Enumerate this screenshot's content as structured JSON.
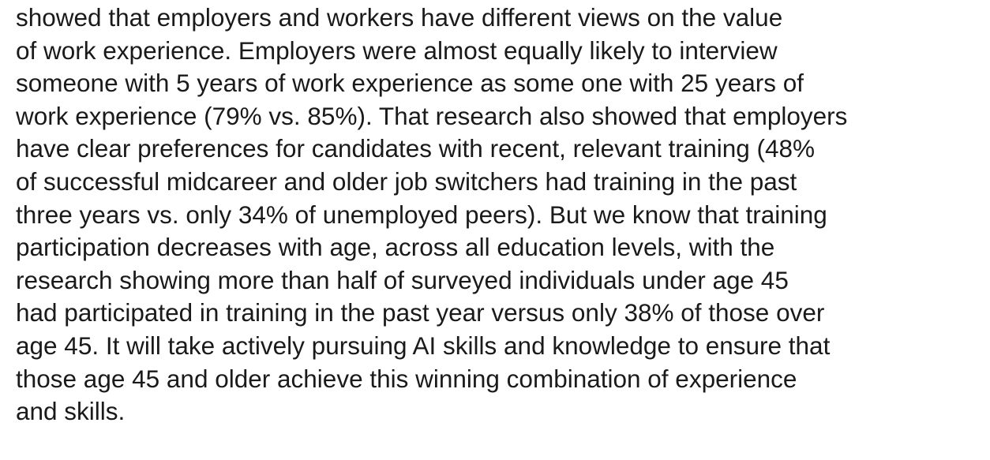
{
  "paragraph": {
    "lines": [
      "showed that employers and workers have different views on the value",
      "of work experience. Employers were almost equally likely to interview",
      "someone with 5 years of work experience as some one with 25 years of",
      "work experience (79% vs. 85%). That research also showed that employers",
      "have clear preferences for candidates with recent, relevant training (48%",
      "of successful midcareer and older job switchers had training in the past",
      "three years vs. only 34% of unemployed peers). But we know that training",
      "participation decreases with age, across all education levels, with the",
      "research showing more than half of surveyed individuals under age 45",
      "had participated in training in the past year versus only 38% of those over",
      "age 45. It will take actively pursuing AI skills and knowledge to ensure that",
      "those age 45 and older achieve this winning combination of experience",
      "and skills."
    ]
  }
}
